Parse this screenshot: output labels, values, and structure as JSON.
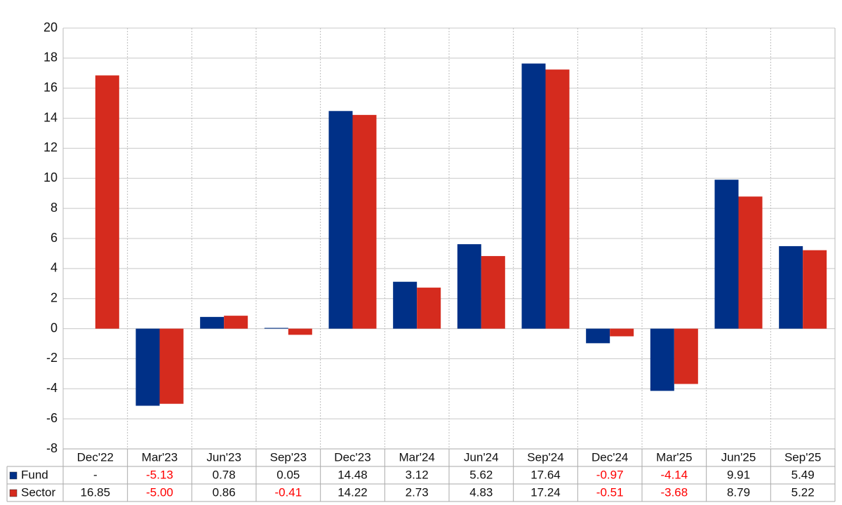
{
  "chart_data": {
    "type": "bar",
    "categories": [
      "Dec'22",
      "Mar'23",
      "Jun'23",
      "Sep'23",
      "Dec'23",
      "Mar'24",
      "Jun'24",
      "Sep'24",
      "Dec'24",
      "Mar'25",
      "Jun'25",
      "Sep'25"
    ],
    "series": [
      {
        "name": "Fund",
        "color": "#003087",
        "values": [
          null,
          -5.13,
          0.78,
          0.05,
          14.48,
          3.12,
          5.62,
          17.64,
          -0.97,
          -4.14,
          9.91,
          5.49
        ],
        "value_labels": [
          "-",
          "-5.13",
          "0.78",
          "0.05",
          "14.48",
          "3.12",
          "5.62",
          "17.64",
          "-0.97",
          "-4.14",
          "9.91",
          "5.49"
        ]
      },
      {
        "name": "Sector",
        "color": "#d52b1e",
        "values": [
          16.85,
          -5.0,
          0.86,
          -0.41,
          14.22,
          2.73,
          4.83,
          17.24,
          -0.51,
          -3.68,
          8.79,
          5.22
        ],
        "value_labels": [
          "16.85",
          "-5.00",
          "0.86",
          "-0.41",
          "14.22",
          "2.73",
          "4.83",
          "17.24",
          "-0.51",
          "-3.68",
          "8.79",
          "5.22"
        ]
      }
    ],
    "ylim": [
      -8,
      20
    ],
    "yticks": [
      -8,
      -6,
      -4,
      -2,
      0,
      2,
      4,
      6,
      8,
      10,
      12,
      14,
      16,
      18,
      20
    ],
    "grid": true
  }
}
